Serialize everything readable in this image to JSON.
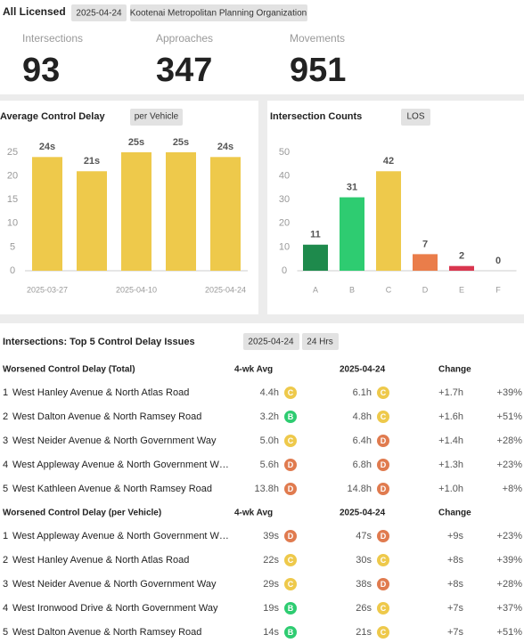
{
  "header": {
    "title": "All Licensed",
    "date": "2025-04-24",
    "organization": "Kootenai Metropolitan Planning Organization"
  },
  "stats": [
    {
      "label": "Intersections",
      "value": 93
    },
    {
      "label": "Approaches",
      "value": 347
    },
    {
      "label": "Movements",
      "value": 951
    }
  ],
  "chart_data": [
    {
      "type": "bar",
      "title": "Average Control Delay",
      "subtitle": "per Vehicle",
      "categories": [
        "2025-03-27",
        null,
        "2025-04-10",
        null,
        "2025-04-24"
      ],
      "values": [
        24,
        21,
        25,
        25,
        24
      ],
      "value_labels": [
        "24s",
        "21s",
        "25s",
        "25s",
        "24s"
      ],
      "color": "#eec94b",
      "ylim": [
        0,
        25
      ],
      "yticks": [
        0,
        5,
        10,
        15,
        20,
        25
      ]
    },
    {
      "type": "bar",
      "title": "Intersection Counts",
      "subtitle": "LOS",
      "categories": [
        "A",
        "B",
        "C",
        "D",
        "E",
        "F"
      ],
      "values": [
        11,
        31,
        42,
        7,
        2,
        0
      ],
      "colors": [
        "#1e8a4c",
        "#2ecc71",
        "#eec94b",
        "#ea7d4a",
        "#d9364f",
        "#9e9e9e"
      ],
      "ylim": [
        0,
        50
      ],
      "yticks": [
        0,
        10,
        20,
        30,
        40,
        50
      ]
    }
  ],
  "issues": {
    "title": "Intersections: Top 5 Control Delay Issues",
    "date": "2025-04-24",
    "period": "24 Hrs",
    "grade_colors": {
      "B": "#2ecc71",
      "C": "#eec94b",
      "D": "#e07b4f"
    },
    "tables": [
      {
        "title": "Worsened Control Delay (Total)",
        "columns": [
          "4-wk Avg",
          "2025-04-24",
          "Change"
        ],
        "rows": [
          {
            "rank": 1,
            "name": "West Hanley Avenue & North Atlas Road",
            "avg": "4.4h",
            "avg_grade": "C",
            "current": "6.1h",
            "current_grade": "C",
            "change": "+1.7h",
            "change_pct": "+39%"
          },
          {
            "rank": 2,
            "name": "West Dalton Avenue & North Ramsey Road",
            "avg": "3.2h",
            "avg_grade": "B",
            "current": "4.8h",
            "current_grade": "C",
            "change": "+1.6h",
            "change_pct": "+51%"
          },
          {
            "rank": 3,
            "name": "West Neider Avenue & North Government Way",
            "avg": "5.0h",
            "avg_grade": "C",
            "current": "6.4h",
            "current_grade": "D",
            "change": "+1.4h",
            "change_pct": "+28%"
          },
          {
            "rank": 4,
            "name": "West Appleway Avenue & North Government W…",
            "avg": "5.6h",
            "avg_grade": "D",
            "current": "6.8h",
            "current_grade": "D",
            "change": "+1.3h",
            "change_pct": "+23%"
          },
          {
            "rank": 5,
            "name": "West Kathleen Avenue & North Ramsey Road",
            "avg": "13.8h",
            "avg_grade": "D",
            "current": "14.8h",
            "current_grade": "D",
            "change": "+1.0h",
            "change_pct": "+8%"
          }
        ]
      },
      {
        "title": "Worsened Control Delay (per Vehicle)",
        "columns": [
          "4-wk Avg",
          "2025-04-24",
          "Change"
        ],
        "rows": [
          {
            "rank": 1,
            "name": "West Appleway Avenue & North Government W…",
            "avg": "39s",
            "avg_grade": "D",
            "current": "47s",
            "current_grade": "D",
            "change": "+9s",
            "change_pct": "+23%"
          },
          {
            "rank": 2,
            "name": "West Hanley Avenue & North Atlas Road",
            "avg": "22s",
            "avg_grade": "C",
            "current": "30s",
            "current_grade": "C",
            "change": "+8s",
            "change_pct": "+39%"
          },
          {
            "rank": 3,
            "name": "West Neider Avenue & North Government Way",
            "avg": "29s",
            "avg_grade": "C",
            "current": "38s",
            "current_grade": "D",
            "change": "+8s",
            "change_pct": "+28%"
          },
          {
            "rank": 4,
            "name": "West Ironwood Drive & North Government Way",
            "avg": "19s",
            "avg_grade": "B",
            "current": "26s",
            "current_grade": "C",
            "change": "+7s",
            "change_pct": "+37%"
          },
          {
            "rank": 5,
            "name": "West Dalton Avenue & North Ramsey Road",
            "avg": "14s",
            "avg_grade": "B",
            "current": "21s",
            "current_grade": "C",
            "change": "+7s",
            "change_pct": "+51%"
          }
        ]
      }
    ]
  }
}
